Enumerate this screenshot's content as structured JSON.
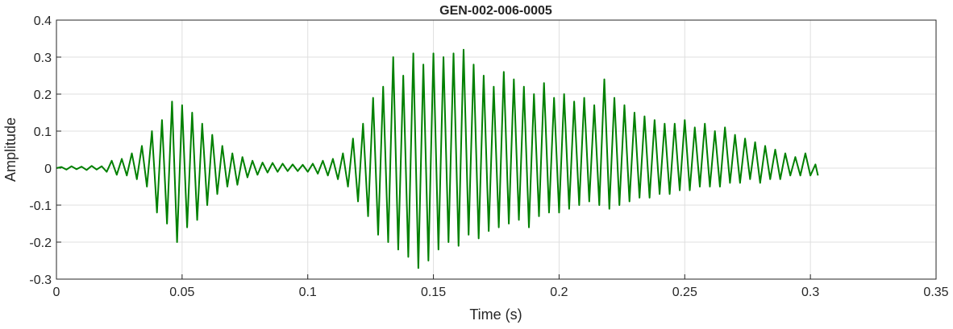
{
  "chart_data": {
    "type": "line",
    "title": "GEN-002-006-0005",
    "x_label": "Time (s)",
    "y_label": "Amplitude",
    "x": [
      0,
      0.002,
      0.004,
      0.006,
      0.008,
      0.01,
      0.012,
      0.014,
      0.016,
      0.018,
      0.02,
      0.022,
      0.024,
      0.026,
      0.028,
      0.03,
      0.032,
      0.034,
      0.036,
      0.038,
      0.04,
      0.042,
      0.044,
      0.046,
      0.048,
      0.05,
      0.052,
      0.054,
      0.056,
      0.058,
      0.06,
      0.062,
      0.064,
      0.066,
      0.068,
      0.07,
      0.072,
      0.074,
      0.076,
      0.078,
      0.08,
      0.082,
      0.084,
      0.086,
      0.088,
      0.09,
      0.092,
      0.094,
      0.096,
      0.098,
      0.1,
      0.102,
      0.104,
      0.106,
      0.108,
      0.11,
      0.112,
      0.114,
      0.116,
      0.118,
      0.12,
      0.122,
      0.124,
      0.126,
      0.128,
      0.13,
      0.132,
      0.134,
      0.136,
      0.138,
      0.14,
      0.142,
      0.144,
      0.146,
      0.148,
      0.15,
      0.152,
      0.154,
      0.156,
      0.158,
      0.16,
      0.162,
      0.164,
      0.166,
      0.168,
      0.17,
      0.172,
      0.174,
      0.176,
      0.178,
      0.18,
      0.182,
      0.184,
      0.186,
      0.188,
      0.19,
      0.192,
      0.194,
      0.196,
      0.198,
      0.2,
      0.202,
      0.204,
      0.206,
      0.208,
      0.21,
      0.212,
      0.214,
      0.216,
      0.218,
      0.22,
      0.222,
      0.224,
      0.226,
      0.228,
      0.23,
      0.232,
      0.234,
      0.236,
      0.238,
      0.24,
      0.242,
      0.244,
      0.246,
      0.248,
      0.25,
      0.252,
      0.254,
      0.256,
      0.258,
      0.26,
      0.262,
      0.264,
      0.266,
      0.268,
      0.27,
      0.272,
      0.274,
      0.276,
      0.278,
      0.28,
      0.282,
      0.284,
      0.286,
      0.288,
      0.29,
      0.292,
      0.294,
      0.296,
      0.298,
      0.3,
      0.302,
      0.303
    ],
    "series": [
      {
        "color": "#008000",
        "values": [
          0,
          0.003,
          -0.004,
          0.005,
          -0.003,
          0.004,
          -0.005,
          0.006,
          -0.004,
          0.005,
          -0.01,
          0.02,
          -0.018,
          0.025,
          -0.02,
          0.04,
          -0.03,
          0.06,
          -0.05,
          0.1,
          -0.12,
          0.13,
          -0.15,
          0.18,
          -0.2,
          0.17,
          -0.16,
          0.15,
          -0.14,
          0.12,
          -0.1,
          0.09,
          -0.07,
          0.06,
          -0.05,
          0.04,
          -0.045,
          0.03,
          -0.025,
          0.02,
          -0.018,
          0.015,
          -0.012,
          0.014,
          -0.01,
          0.012,
          -0.008,
          0.01,
          -0.008,
          0.009,
          -0.01,
          0.012,
          -0.015,
          0.02,
          -0.02,
          0.025,
          -0.03,
          0.04,
          -0.05,
          0.08,
          -0.09,
          0.12,
          -0.13,
          0.19,
          -0.18,
          0.22,
          -0.2,
          0.3,
          -0.22,
          0.25,
          -0.24,
          0.31,
          -0.27,
          0.28,
          -0.25,
          0.31,
          -0.22,
          0.3,
          -0.2,
          0.31,
          -0.21,
          0.32,
          -0.18,
          0.28,
          -0.19,
          0.25,
          -0.17,
          0.22,
          -0.16,
          0.26,
          -0.15,
          0.24,
          -0.14,
          0.22,
          -0.16,
          0.2,
          -0.13,
          0.23,
          -0.12,
          0.19,
          -0.12,
          0.2,
          -0.11,
          0.18,
          -0.1,
          0.19,
          -0.09,
          0.17,
          -0.1,
          0.24,
          -0.11,
          0.19,
          -0.1,
          0.17,
          -0.09,
          0.15,
          -0.08,
          0.14,
          -0.08,
          0.13,
          -0.07,
          0.12,
          -0.07,
          0.12,
          -0.06,
          0.13,
          -0.06,
          0.11,
          -0.05,
          0.12,
          -0.05,
          0.1,
          -0.05,
          0.11,
          -0.04,
          0.09,
          -0.04,
          0.08,
          -0.03,
          0.07,
          -0.04,
          0.06,
          -0.03,
          0.05,
          -0.03,
          0.04,
          -0.02,
          0.03,
          -0.02,
          0.04,
          -0.02,
          0.01,
          -0.02
        ]
      }
    ],
    "xlim": [
      0,
      0.35
    ],
    "ylim": [
      -0.3,
      0.4
    ],
    "xticks": [
      0,
      0.05,
      0.1,
      0.15,
      0.2,
      0.25,
      0.3,
      0.35
    ],
    "yticks": [
      -0.3,
      -0.2,
      -0.1,
      0,
      0.1,
      0.2,
      0.3,
      0.4
    ],
    "grid": true
  }
}
